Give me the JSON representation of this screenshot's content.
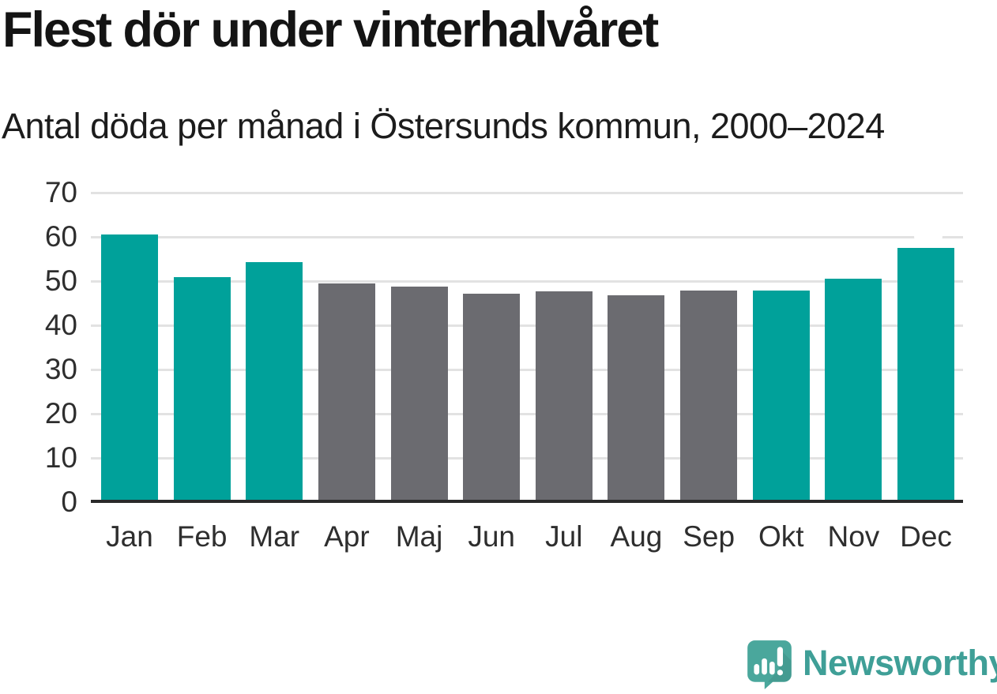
{
  "header": {
    "title": "Flest dör under vinterhalvåret",
    "subtitle": "Antal döda per månad i Östersunds kommun, 2000–2024"
  },
  "chart_data": {
    "type": "bar",
    "title": "Flest dör under vinterhalvåret",
    "subtitle": "Antal döda per månad i Östersunds kommun, 2000–2024",
    "categories": [
      "Jan",
      "Feb",
      "Mar",
      "Apr",
      "Maj",
      "Jun",
      "Jul",
      "Aug",
      "Sep",
      "Okt",
      "Nov",
      "Dec"
    ],
    "values": [
      60.6,
      50.9,
      54.2,
      49.4,
      48.7,
      47.1,
      47.6,
      46.8,
      47.9,
      47.9,
      50.6,
      57.5
    ],
    "groups": [
      "winter",
      "winter",
      "winter",
      "summer",
      "summer",
      "summer",
      "summer",
      "summer",
      "summer",
      "winter",
      "winter",
      "winter"
    ],
    "group_colors": {
      "winter": "#00a19a",
      "summer": "#6b6b70"
    },
    "xlabel": "",
    "ylabel": "",
    "ylim": [
      0,
      70
    ],
    "yticks": [
      0,
      10,
      20,
      30,
      40,
      50,
      60,
      70
    ],
    "grid": true,
    "legend": "none",
    "gridline_color": "#e2e2e2",
    "axis_line_color": "#2a2a2a",
    "tick_label_color": "#2e2e2e"
  },
  "footer": {
    "brand": "Newsworthy",
    "brand_color": "#3f9f97",
    "icon_color": "#4aa79c",
    "logo_icon": "speech-bubble-bar-chart-icon"
  }
}
